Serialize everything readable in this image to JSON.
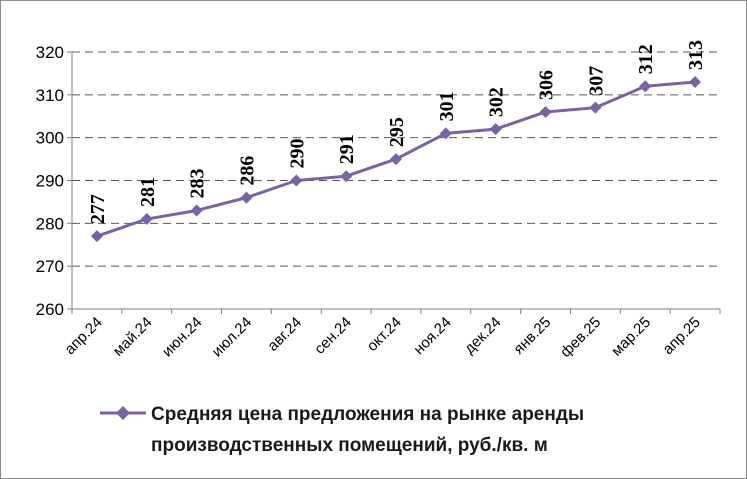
{
  "chart_data": {
    "type": "line",
    "categories": [
      "апр.24",
      "май.24",
      "июн.24",
      "июл.24",
      "авг.24",
      "сен.24",
      "окт.24",
      "ноя.24",
      "дек.24",
      "янв.25",
      "фев.25",
      "мар.25",
      "апр.25"
    ],
    "series": [
      {
        "name": "Средняя цена предложения на рынке аренды производственных помещений,  руб./кв. м",
        "values": [
          277,
          281,
          283,
          286,
          290,
          291,
          295,
          301,
          302,
          306,
          307,
          312,
          313
        ],
        "color": "#7b62a3"
      }
    ],
    "data_labels": [
      "277",
      "281",
      "283",
      "286",
      "290",
      "291",
      "295",
      "301",
      "302",
      "306",
      "307",
      "312",
      "313"
    ],
    "ylim": [
      260,
      320
    ],
    "yticks": [
      "260",
      "270",
      "280",
      "290",
      "300",
      "310",
      "320"
    ],
    "grid": "horizontal-dashed",
    "legend_position": "bottom",
    "legend": {
      "line1": "Средняя цена предложения на рынке аренды",
      "line2": "производственных помещений,  руб./кв. м"
    }
  }
}
